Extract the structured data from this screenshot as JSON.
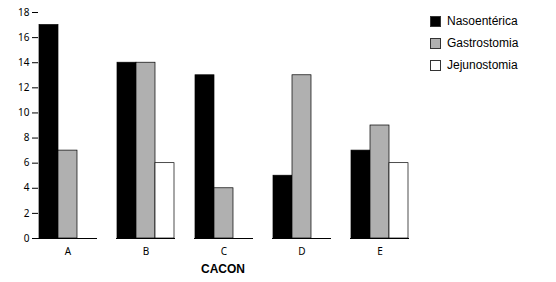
{
  "chart_data": {
    "type": "bar",
    "categories": [
      "A",
      "B",
      "C",
      "D",
      "E"
    ],
    "series": [
      {
        "name": "Nasoentérica",
        "color": "#000000",
        "values": [
          17,
          14,
          13,
          5,
          7
        ]
      },
      {
        "name": "Gastrostomia",
        "color": "#b0b0b0",
        "values": [
          7,
          14,
          4,
          13,
          9
        ]
      },
      {
        "name": "Jejunostomia",
        "color": "#ffffff",
        "values": [
          0,
          6,
          0,
          0,
          6
        ]
      }
    ],
    "xlabel": "CACON",
    "ylim": [
      0,
      18
    ],
    "yticks": [
      0,
      2,
      4,
      6,
      8,
      10,
      12,
      14,
      16,
      18
    ],
    "grid": false,
    "legend": "right"
  }
}
